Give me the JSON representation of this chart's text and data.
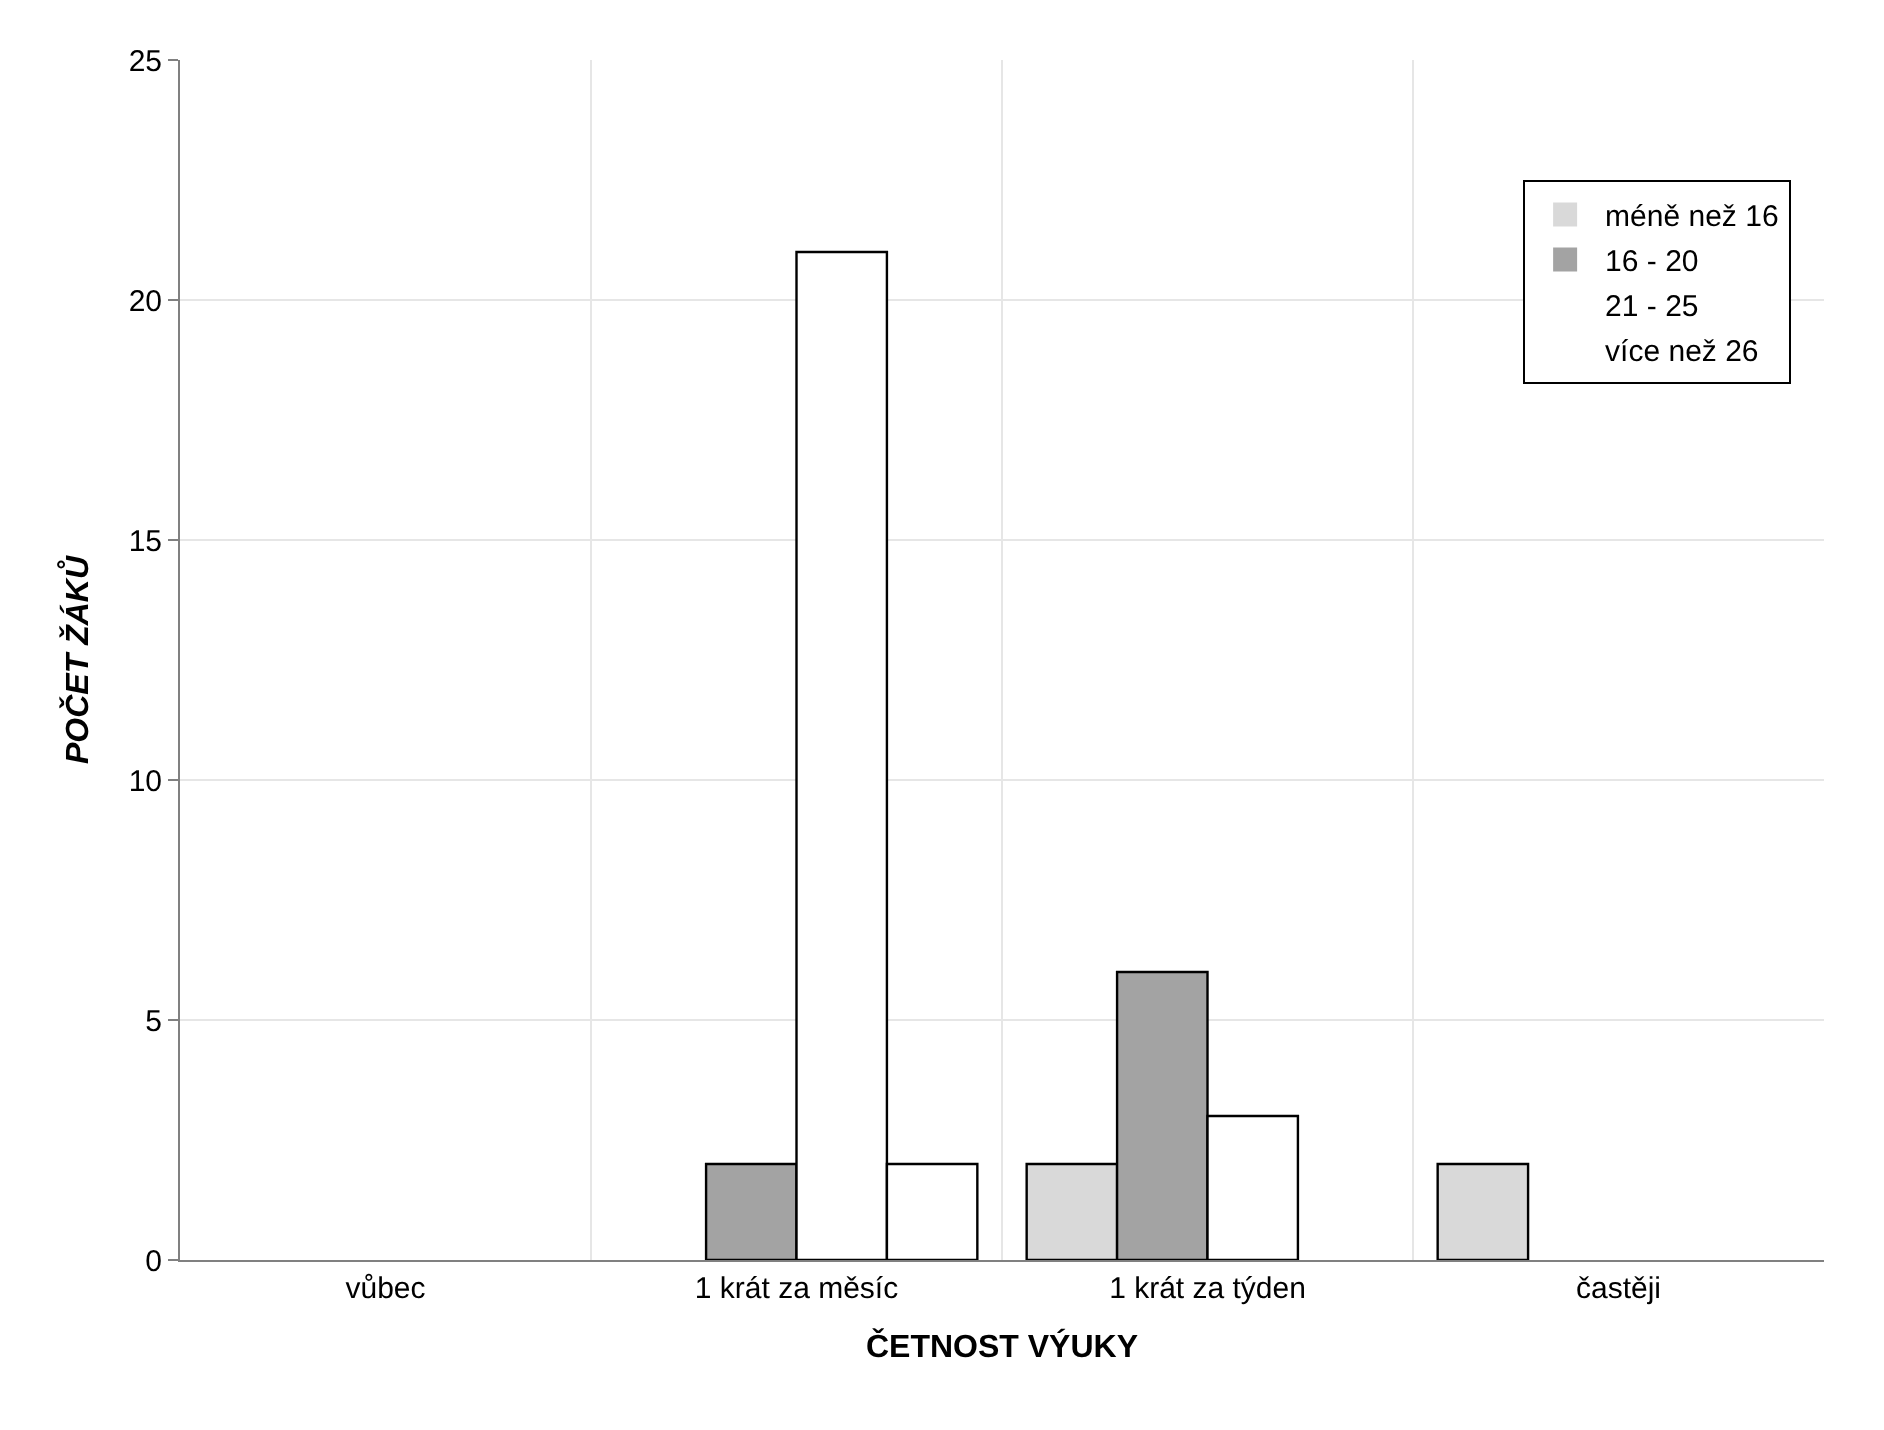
{
  "chart_data": {
    "type": "bar",
    "xlabel": "ČETNOST VÝUKY",
    "ylabel": "POČET ŽÁKŮ",
    "categories": [
      "vůbec",
      "1 krát za měsíc",
      "1 krát za týden",
      "častěji"
    ],
    "series": [
      {
        "name": "méně než 16",
        "color": "#d9d9d9",
        "values": [
          0,
          0,
          2,
          2
        ]
      },
      {
        "name": "16 - 20",
        "color": "#a3a3a3",
        "values": [
          0,
          2,
          6,
          0
        ]
      },
      {
        "name": "21 - 25",
        "color": "#ffffff",
        "values": [
          0,
          21,
          3,
          0
        ]
      },
      {
        "name": "více než 26",
        "color": "#ffffff",
        "values": [
          0,
          2,
          0,
          0
        ]
      }
    ],
    "ylim": [
      0,
      25
    ],
    "yticks": [
      0,
      5,
      10,
      15,
      20,
      25
    ],
    "grid": true,
    "legend": "top right"
  }
}
